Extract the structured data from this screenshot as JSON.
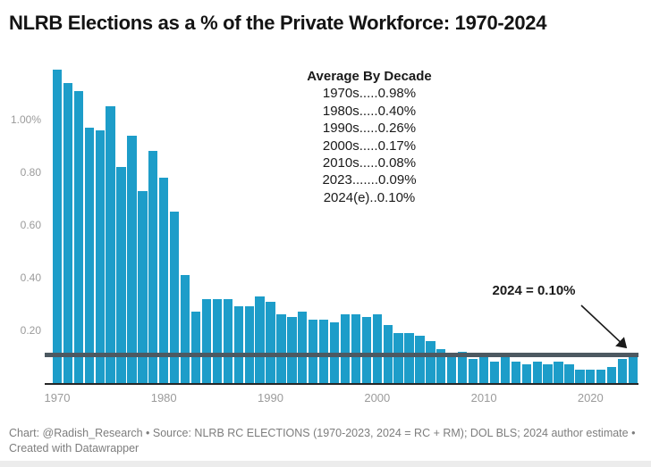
{
  "title": "NLRB Elections as a % of the Private Workforce: 1970-2024",
  "colors": {
    "bar": "#1D9DC9",
    "reference_line": "#4D5961",
    "axis_labels": "#9b9b9b",
    "footer_text": "#7d7d7d"
  },
  "chart_data": {
    "type": "bar",
    "title": "NLRB Elections as a % of the Private Workforce: 1970-2024",
    "xlabel": "",
    "ylabel": "",
    "grid": false,
    "legend": "none",
    "ylim": [
      0,
      1.19
    ],
    "x": [
      1970,
      1971,
      1972,
      1973,
      1974,
      1975,
      1976,
      1977,
      1978,
      1979,
      1980,
      1981,
      1982,
      1983,
      1984,
      1985,
      1986,
      1987,
      1988,
      1989,
      1990,
      1991,
      1992,
      1993,
      1994,
      1995,
      1996,
      1997,
      1998,
      1999,
      2000,
      2001,
      2002,
      2003,
      2004,
      2005,
      2006,
      2007,
      2008,
      2009,
      2010,
      2011,
      2012,
      2013,
      2014,
      2015,
      2016,
      2017,
      2018,
      2019,
      2020,
      2021,
      2022,
      2023,
      2024
    ],
    "values": [
      1.19,
      1.14,
      1.11,
      0.97,
      0.96,
      1.05,
      0.82,
      0.94,
      0.73,
      0.88,
      0.78,
      0.65,
      0.41,
      0.27,
      0.32,
      0.32,
      0.32,
      0.29,
      0.29,
      0.33,
      0.31,
      0.26,
      0.25,
      0.27,
      0.24,
      0.24,
      0.23,
      0.26,
      0.26,
      0.25,
      0.26,
      0.22,
      0.19,
      0.19,
      0.18,
      0.16,
      0.13,
      0.1,
      0.12,
      0.09,
      0.11,
      0.08,
      0.1,
      0.08,
      0.07,
      0.08,
      0.07,
      0.08,
      0.07,
      0.05,
      0.05,
      0.05,
      0.06,
      0.09,
      0.1
    ],
    "y_ticks": [
      {
        "value": 1.0,
        "label": "1.00%"
      },
      {
        "value": 0.8,
        "label": "0.80"
      },
      {
        "value": 0.6,
        "label": "0.60"
      },
      {
        "value": 0.4,
        "label": "0.40"
      },
      {
        "value": 0.2,
        "label": "0.20"
      }
    ],
    "x_ticks": [
      {
        "year": 1970,
        "label": "1970"
      },
      {
        "year": 1980,
        "label": "1980"
      },
      {
        "year": 1990,
        "label": "1990"
      },
      {
        "year": 2000,
        "label": "2000"
      },
      {
        "year": 2010,
        "label": "2010"
      },
      {
        "year": 2020,
        "label": "2020"
      }
    ],
    "reference_line": {
      "value": 0.1
    }
  },
  "annotations": {
    "decade_table": {
      "header": "Average By Decade",
      "rows": [
        "1970s.....0.98%",
        "1980s.....0.40%",
        "1990s.....0.26%",
        "2000s.....0.17%",
        "2010s.....0.08%",
        "2023.......0.09%",
        "2024(e)..0.10%"
      ]
    },
    "callout": {
      "text": "2024 = 0.10%"
    }
  },
  "footer": {
    "text": "Chart: @Radish_Research • Source: NLRB RC ELECTIONS (1970-2023, 2024 = RC + RM); DOL BLS; 2024 author estimate • Created with Datawrapper"
  }
}
